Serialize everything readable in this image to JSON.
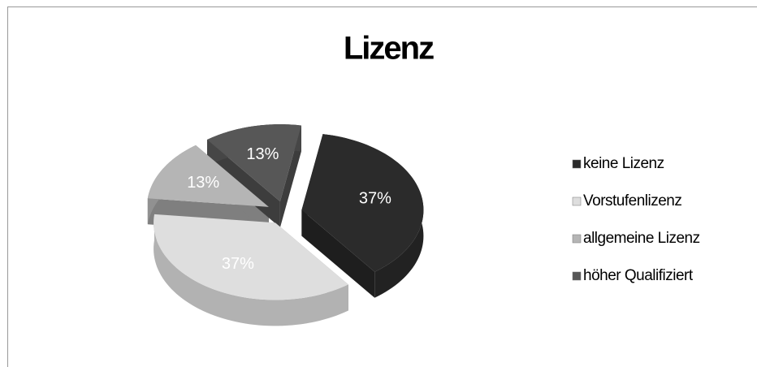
{
  "chart_data": {
    "type": "pie3d",
    "title": "Lizenz",
    "categories": [
      "keine Lizenz",
      "Vorstufenlizenz",
      "allgemeine Lizenz",
      "höher Qualifiziert"
    ],
    "values": [
      37,
      37,
      13,
      13
    ],
    "value_labels": [
      "37%",
      "37%",
      "13%",
      "13%"
    ],
    "colors": [
      "#2b2b2b",
      "#dedede",
      "#b5b5b5",
      "#575757"
    ],
    "legend": "right"
  }
}
